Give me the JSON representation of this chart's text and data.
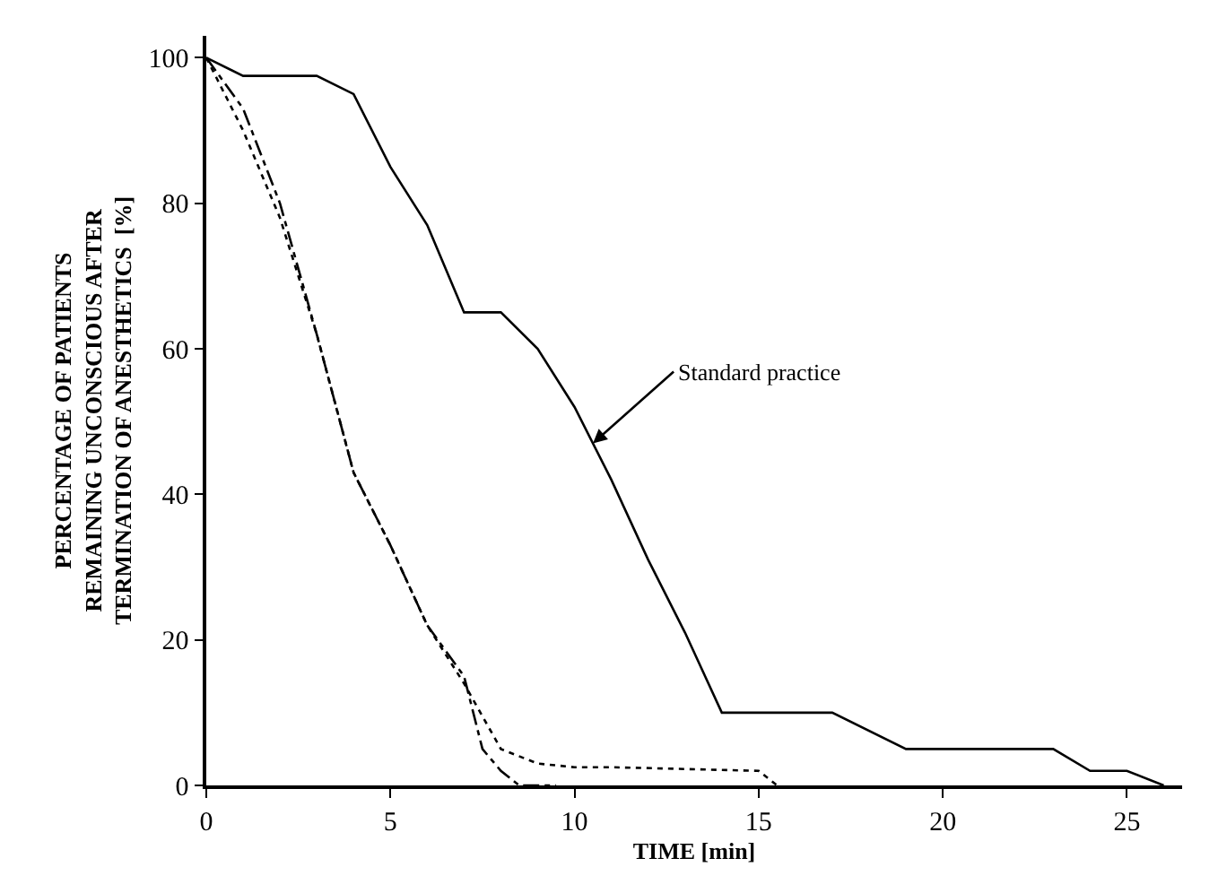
{
  "chart_data": {
    "type": "line",
    "xlabel": "TIME [min]",
    "ylabel": "PERCENTAGE OF PATIENTS\nREMAINING UNCONSCIOUS AFTER\nTERMINATION OF ANESTHETICS  [%]",
    "xlim": [
      0,
      26.5
    ],
    "ylim": [
      0,
      103
    ],
    "xticks": [
      0,
      5,
      10,
      15,
      20,
      25
    ],
    "yticks": [
      0,
      20,
      40,
      60,
      80,
      100
    ],
    "marker": "none",
    "series": [
      {
        "color": "#000000",
        "line_style": "solid",
        "x": [
          0,
          1,
          3,
          4,
          5,
          6,
          7,
          8,
          9,
          10,
          11,
          12,
          13,
          14,
          17,
          19,
          23,
          24,
          25,
          26
        ],
        "values": [
          100,
          97.5,
          97.5,
          95,
          85,
          77,
          65,
          65,
          60,
          52,
          42,
          31,
          21,
          10,
          10,
          5,
          5,
          2,
          2,
          0
        ]
      },
      {
        "color": "#000000",
        "line_style": "dashed",
        "x": [
          0,
          1,
          2,
          3,
          4,
          5,
          6,
          7,
          7.5,
          8,
          8.5,
          9.5
        ],
        "values": [
          100,
          93,
          80,
          62,
          43,
          33,
          22,
          15,
          5,
          2,
          0,
          0
        ]
      },
      {
        "color": "#000000",
        "line_style": "dotted",
        "x": [
          0,
          1,
          2,
          3,
          4,
          5,
          6,
          7,
          8,
          9,
          10,
          11,
          15,
          15.5
        ],
        "values": [
          100,
          90,
          78,
          62,
          43,
          33,
          22,
          14,
          5,
          3,
          2.5,
          2.5,
          2,
          0
        ]
      }
    ],
    "annotations": [
      {
        "text": "Standard practice",
        "x": 10.5,
        "y": 47
      }
    ]
  }
}
